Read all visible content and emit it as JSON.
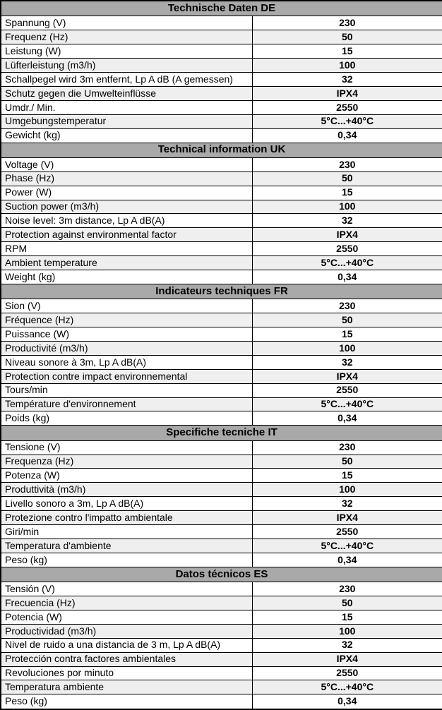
{
  "colors": {
    "header_bg": "#a9a9a9",
    "stripe_bg": "#efefef",
    "row_bg": "#ffffff",
    "border": "#000000",
    "text": "#000000"
  },
  "table": {
    "sections": [
      {
        "id": "de",
        "title": "Technische Daten DE",
        "rows": [
          {
            "label": "Spannung (V)",
            "value": "230"
          },
          {
            "label": "Frequenz (Hz)",
            "value": "50"
          },
          {
            "label": "Leistung (W)",
            "value": "15"
          },
          {
            "label": "Lüfterleistung (m3/h)",
            "value": "100"
          },
          {
            "label": "Schallpegel wird 3m entfernt, Lp A dB (A gemessen)",
            "value": "32"
          },
          {
            "label": "Schutz gegen die Umwelteinflüsse",
            "value": "IPX4"
          },
          {
            "label": "Umdr./ Min.",
            "value": "2550"
          },
          {
            "label": "Umgebungstemperatur",
            "value": "5°C...+40°C"
          },
          {
            "label": "Gewicht (kg)",
            "value": "0,34"
          }
        ]
      },
      {
        "id": "uk",
        "title": "Technical information UK",
        "rows": [
          {
            "label": "Voltage (V)",
            "value": "230"
          },
          {
            "label": "Phase (Hz)",
            "value": "50"
          },
          {
            "label": "Power (W)",
            "value": "15"
          },
          {
            "label": "Suction power (m3/h)",
            "value": "100"
          },
          {
            "label": "Noise level: 3m distance, Lp A dB(A)",
            "value": "32"
          },
          {
            "label": "Protection against environmental factor",
            "value": "IPX4"
          },
          {
            "label": "RPM",
            "value": "2550"
          },
          {
            "label": "Ambient temperature",
            "value": "5°C...+40°C"
          },
          {
            "label": "Weight (kg)",
            "value": "0,34"
          }
        ]
      },
      {
        "id": "fr",
        "title": "Indicateurs techniques FR",
        "rows": [
          {
            "label": "Sion (V)",
            "value": "230"
          },
          {
            "label": "Fréquence (Hz)",
            "value": "50"
          },
          {
            "label": "Puissance (W)",
            "value": "15"
          },
          {
            "label": "Productivité (m3/h)",
            "value": "100"
          },
          {
            "label": "Niveau sonore à 3m, Lp A dB(A)",
            "value": "32"
          },
          {
            "label": "Protection contre impact environnemental",
            "value": "IPX4"
          },
          {
            "label": "Tours/min",
            "value": "2550"
          },
          {
            "label": "Température d'environnement",
            "value": "5°C...+40°C"
          },
          {
            "label": "Poids (kg)",
            "value": "0,34"
          }
        ]
      },
      {
        "id": "it",
        "title": "Specifiche tecniche IT",
        "rows": [
          {
            "label": "Tensione (V)",
            "value": "230"
          },
          {
            "label": "Frequenza (Hz)",
            "value": "50"
          },
          {
            "label": "Potenza (W)",
            "value": "15"
          },
          {
            "label": "Produttività (m3/h)",
            "value": "100"
          },
          {
            "label": "Livello sonoro a 3m, Lp A dB(A)",
            "value": "32"
          },
          {
            "label": "Protezione contro l'impatto ambientale",
            "value": "IPX4"
          },
          {
            "label": "Giri/min",
            "value": "2550"
          },
          {
            "label": "Temperatura d'ambiente",
            "value": "5°C...+40°C"
          },
          {
            "label": "Peso (kg)",
            "value": "0,34"
          }
        ]
      },
      {
        "id": "es",
        "title": "Datos técnicos ES",
        "rows": [
          {
            "label": "Tensión (V)",
            "value": "230"
          },
          {
            "label": "Frecuencia (Hz)",
            "value": "50"
          },
          {
            "label": "Potencia (W)",
            "value": "15"
          },
          {
            "label": "Productividad (m3/h)",
            "value": "100"
          },
          {
            "label": "Nivel de ruido a una distancia de 3 m, Lp A dB(A)",
            "value": "32"
          },
          {
            "label": "Protección contra factores ambientales",
            "value": "IPX4"
          },
          {
            "label": "Revoluciones por minuto",
            "value": "2550"
          },
          {
            "label": "Temperatura ambiente",
            "value": "5°C...+40°C"
          },
          {
            "label": "Peso (kg)",
            "value": "0,34"
          }
        ]
      }
    ]
  }
}
